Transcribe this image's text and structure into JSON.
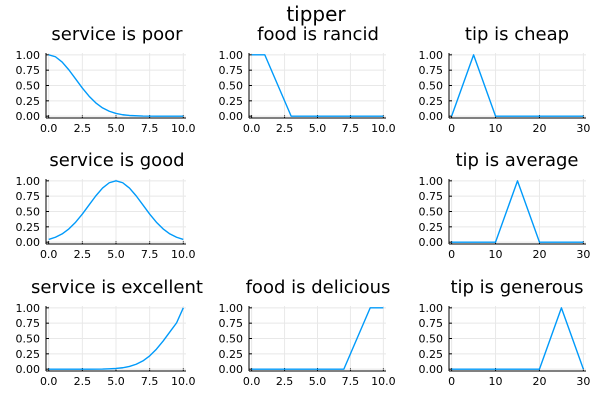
{
  "figure": {
    "title": "tipper",
    "line_color": "#009AFA",
    "grid": true
  },
  "chart_data": [
    {
      "type": "line",
      "title": "service is poor",
      "xlim": [
        0,
        10
      ],
      "ylim": [
        0,
        1
      ],
      "xticks": [
        "0.0",
        "2.5",
        "5.0",
        "7.5",
        "10.0"
      ],
      "yticks": [
        "0.00",
        "0.25",
        "0.50",
        "0.75",
        "1.00"
      ],
      "series": [
        {
          "x": [
            0,
            0.5,
            1,
            1.5,
            2,
            2.5,
            3,
            3.5,
            4,
            4.5,
            5,
            5.5,
            6,
            7,
            8,
            9,
            10
          ],
          "y": [
            1.0,
            0.969,
            0.882,
            0.755,
            0.607,
            0.458,
            0.325,
            0.216,
            0.135,
            0.08,
            0.044,
            0.023,
            0.011,
            0.002,
            0.0,
            0.0,
            0.0
          ]
        }
      ]
    },
    {
      "type": "line",
      "title": "food is rancid",
      "xlim": [
        0,
        10
      ],
      "ylim": [
        0,
        1
      ],
      "xticks": [
        "0.0",
        "2.5",
        "5.0",
        "7.5",
        "10.0"
      ],
      "yticks": [
        "0.00",
        "0.25",
        "0.50",
        "0.75",
        "1.00"
      ],
      "series": [
        {
          "x": [
            0,
            1,
            3,
            10
          ],
          "y": [
            1.0,
            1.0,
            0.0,
            0.0
          ]
        }
      ]
    },
    {
      "type": "line",
      "title": "tip is cheap",
      "xlim": [
        0,
        30
      ],
      "ylim": [
        0,
        1
      ],
      "xticks": [
        "0",
        "10",
        "20",
        "30"
      ],
      "yticks": [
        "0.00",
        "0.25",
        "0.50",
        "0.75",
        "1.00"
      ],
      "series": [
        {
          "x": [
            0,
            5,
            10,
            30
          ],
          "y": [
            0.0,
            1.0,
            0.0,
            0.0
          ]
        }
      ]
    },
    {
      "type": "line",
      "title": "service is good",
      "xlim": [
        0,
        10
      ],
      "ylim": [
        0,
        1
      ],
      "xticks": [
        "0.0",
        "2.5",
        "5.0",
        "7.5",
        "10.0"
      ],
      "yticks": [
        "0.00",
        "0.25",
        "0.50",
        "0.75",
        "1.00"
      ],
      "series": [
        {
          "x": [
            0,
            0.5,
            1,
            1.5,
            2,
            2.5,
            3,
            3.5,
            4,
            4.5,
            5,
            5.5,
            6,
            6.5,
            7,
            7.5,
            8,
            8.5,
            9,
            9.5,
            10
          ],
          "y": [
            0.044,
            0.08,
            0.135,
            0.216,
            0.325,
            0.458,
            0.607,
            0.755,
            0.882,
            0.969,
            1.0,
            0.969,
            0.882,
            0.755,
            0.607,
            0.458,
            0.325,
            0.216,
            0.135,
            0.08,
            0.044
          ]
        }
      ]
    },
    null,
    {
      "type": "line",
      "title": "tip is average",
      "xlim": [
        0,
        30
      ],
      "ylim": [
        0,
        1
      ],
      "xticks": [
        "0",
        "10",
        "20",
        "30"
      ],
      "yticks": [
        "0.00",
        "0.25",
        "0.50",
        "0.75",
        "1.00"
      ],
      "series": [
        {
          "x": [
            0,
            10,
            15,
            20,
            30
          ],
          "y": [
            0.0,
            0.0,
            1.0,
            0.0,
            0.0
          ]
        }
      ]
    },
    {
      "type": "line",
      "title": "service is excellent",
      "xlim": [
        0,
        10
      ],
      "ylim": [
        0,
        1
      ],
      "xticks": [
        "0.0",
        "2.5",
        "5.0",
        "7.5",
        "10.0"
      ],
      "yticks": [
        "0.00",
        "0.25",
        "0.50",
        "0.75",
        "1.00"
      ],
      "series": [
        {
          "x": [
            0,
            1,
            2,
            3,
            4,
            4.5,
            5,
            5.5,
            6,
            6.5,
            7,
            7.5,
            8,
            8.5,
            9,
            9.5,
            10
          ],
          "y": [
            0.0,
            0.0,
            0.0,
            0.0,
            0.002,
            0.006,
            0.011,
            0.023,
            0.044,
            0.08,
            0.135,
            0.216,
            0.325,
            0.458,
            0.607,
            0.755,
            1.0
          ]
        }
      ]
    },
    {
      "type": "line",
      "title": "food is delicious",
      "xlim": [
        0,
        10
      ],
      "ylim": [
        0,
        1
      ],
      "xticks": [
        "0.0",
        "2.5",
        "5.0",
        "7.5",
        "10.0"
      ],
      "yticks": [
        "0.00",
        "0.25",
        "0.50",
        "0.75",
        "1.00"
      ],
      "series": [
        {
          "x": [
            0,
            7,
            9,
            10
          ],
          "y": [
            0.0,
            0.0,
            1.0,
            1.0
          ]
        }
      ]
    },
    {
      "type": "line",
      "title": "tip is generous",
      "xlim": [
        0,
        30
      ],
      "ylim": [
        0,
        1
      ],
      "xticks": [
        "0",
        "10",
        "20",
        "30"
      ],
      "yticks": [
        "0.00",
        "0.25",
        "0.50",
        "0.75",
        "1.00"
      ],
      "series": [
        {
          "x": [
            0,
            20,
            25,
            30
          ],
          "y": [
            0.0,
            0.0,
            1.0,
            0.0
          ]
        }
      ]
    }
  ]
}
